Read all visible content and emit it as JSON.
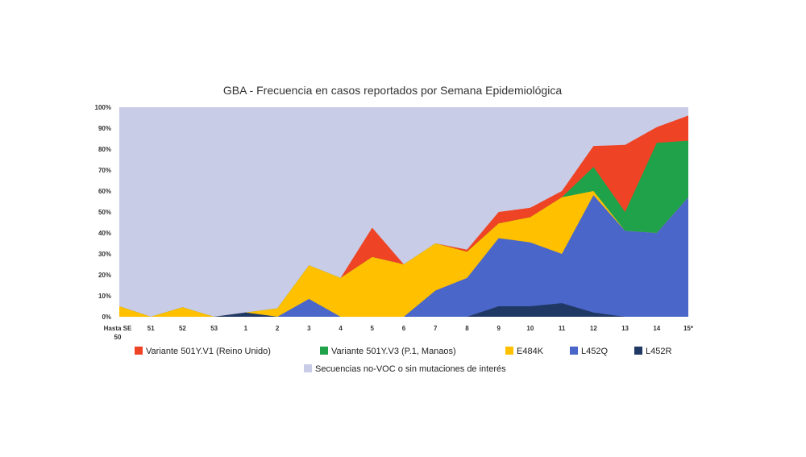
{
  "chart_data": {
    "type": "area",
    "stacked": true,
    "title": "GBA - Frecuencia en casos reportados por Semana Epidemiológica",
    "xlabel": "",
    "ylabel": "",
    "ylim": [
      0,
      100
    ],
    "y_ticks": [
      "0%",
      "10%",
      "20%",
      "30%",
      "40%",
      "50%",
      "60%",
      "70%",
      "80%",
      "90%",
      "100%"
    ],
    "categories": [
      "Hasta SE 50",
      "51",
      "52",
      "53",
      "1",
      "2",
      "3",
      "4",
      "5",
      "6",
      "7",
      "8",
      "9",
      "10",
      "11",
      "12",
      "13",
      "14",
      "15*"
    ],
    "series": [
      {
        "name": "L452R",
        "color": "#203864",
        "values": [
          0,
          0,
          0,
          0,
          2,
          0,
          0,
          0,
          0,
          0,
          0,
          0,
          5,
          5,
          6.5,
          2,
          0,
          0,
          0
        ]
      },
      {
        "name": "L452Q",
        "color": "#4A66C8",
        "values": [
          0,
          0,
          0,
          0,
          0,
          0,
          8.5,
          0,
          0,
          0,
          12.5,
          18.5,
          32.5,
          30.5,
          23.5,
          56,
          41,
          40,
          57
        ]
      },
      {
        "name": "E484K",
        "color": "#FFC000",
        "values": [
          5,
          0,
          4.5,
          0,
          0,
          4,
          16,
          18.5,
          28.5,
          25,
          22.5,
          12.5,
          7,
          12,
          27,
          2,
          0,
          0,
          0
        ]
      },
      {
        "name": "Variante 501Y.V3 (P.1, Manaos)",
        "color": "#1FA24A",
        "values": [
          0,
          0,
          0,
          0,
          0,
          0,
          0,
          0,
          0,
          0,
          0,
          0,
          0,
          0,
          0,
          11.5,
          9,
          43,
          27
        ]
      },
      {
        "name": "Variante 501Y.V1 (Reino Unido)",
        "color": "#EE4425",
        "values": [
          0,
          0,
          0,
          0,
          0,
          0,
          0,
          0,
          14,
          0,
          0,
          1,
          5.5,
          4.5,
          3,
          10,
          32,
          7.5,
          12
        ]
      },
      {
        "name": "Secuencias no-VOC o sin mutaciones de interés",
        "color": "#C8CCE6",
        "values": [
          95,
          100,
          95.5,
          100,
          98,
          96,
          75.5,
          81.5,
          57.5,
          75,
          65,
          68,
          50,
          48,
          40,
          18.5,
          18,
          9.5,
          4
        ]
      }
    ],
    "legend": {
      "placement": "bottom",
      "items": [
        {
          "label": "Variante 501Y.V1 (Reino Unido)",
          "color": "#EE4425"
        },
        {
          "label": "Variante 501Y.V3 (P.1, Manaos)",
          "color": "#1FA24A"
        },
        {
          "label": "E484K",
          "color": "#FFC000"
        },
        {
          "label": "L452Q",
          "color": "#4A66C8"
        },
        {
          "label": "L452R",
          "color": "#203864"
        },
        {
          "label": "Secuencias no-VOC o sin mutaciones de interés",
          "color": "#C8CCE6"
        }
      ]
    }
  }
}
